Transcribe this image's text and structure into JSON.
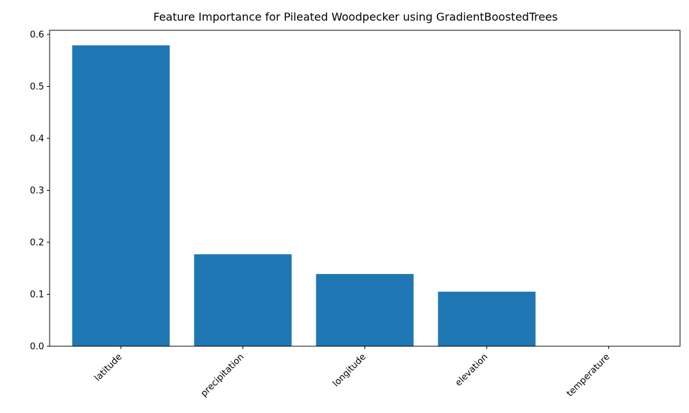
{
  "chart_data": {
    "type": "bar",
    "title": "Feature Importance for Pileated Woodpecker using GradientBoostedTrees",
    "xlabel": "",
    "ylabel": "",
    "categories": [
      "latitude",
      "precipitation",
      "longitude",
      "elevation",
      "temperature"
    ],
    "values": [
      0.579,
      0.177,
      0.139,
      0.105,
      0.0
    ],
    "ylim": [
      0,
      0.608
    ],
    "yticks": [
      0.0,
      0.1,
      0.2,
      0.3,
      0.4,
      0.5,
      0.6
    ],
    "ytick_labels": [
      "0.0",
      "0.1",
      "0.2",
      "0.3",
      "0.4",
      "0.5",
      "0.6"
    ],
    "grid": false,
    "bar_color": "#1f77b4"
  }
}
